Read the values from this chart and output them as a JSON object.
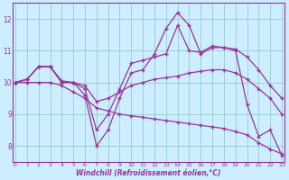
{
  "xlabel": "Windchill (Refroidissement éolien,°C)",
  "background_color": "#cceeff",
  "line_color": "#993399",
  "grid_color": "#99cccc",
  "x_min": 0,
  "x_max": 23,
  "y_min": 7.5,
  "y_max": 12.5,
  "yticks": [
    8,
    9,
    10,
    11,
    12
  ],
  "xticks": [
    0,
    1,
    2,
    3,
    4,
    5,
    6,
    7,
    8,
    9,
    10,
    11,
    12,
    13,
    14,
    15,
    16,
    17,
    18,
    19,
    20,
    21,
    22,
    23
  ],
  "series": [
    [
      10.0,
      10.1,
      10.5,
      10.5,
      10.0,
      10.0,
      9.6,
      8.0,
      8.5,
      9.5,
      10.3,
      10.4,
      10.9,
      11.7,
      12.2,
      11.8,
      10.9,
      11.1,
      11.1,
      11.0,
      9.3,
      8.3,
      8.5,
      7.7
    ],
    [
      10.0,
      10.1,
      10.5,
      10.5,
      10.0,
      10.0,
      9.8,
      8.5,
      9.0,
      9.8,
      10.6,
      10.7,
      10.8,
      10.9,
      11.8,
      11.0,
      10.95,
      11.15,
      11.1,
      11.05,
      10.8,
      10.4,
      9.9,
      9.5
    ],
    [
      10.0,
      10.1,
      10.5,
      10.5,
      10.05,
      10.0,
      9.9,
      9.4,
      9.5,
      9.7,
      9.9,
      10.0,
      10.1,
      10.15,
      10.2,
      10.3,
      10.35,
      10.4,
      10.4,
      10.3,
      10.1,
      9.8,
      9.5,
      9.0
    ],
    [
      10.0,
      10.0,
      10.0,
      10.0,
      9.9,
      9.7,
      9.5,
      9.2,
      9.1,
      9.0,
      8.95,
      8.9,
      8.85,
      8.8,
      8.75,
      8.7,
      8.65,
      8.6,
      8.55,
      8.45,
      8.35,
      8.1,
      7.9,
      7.75
    ]
  ]
}
